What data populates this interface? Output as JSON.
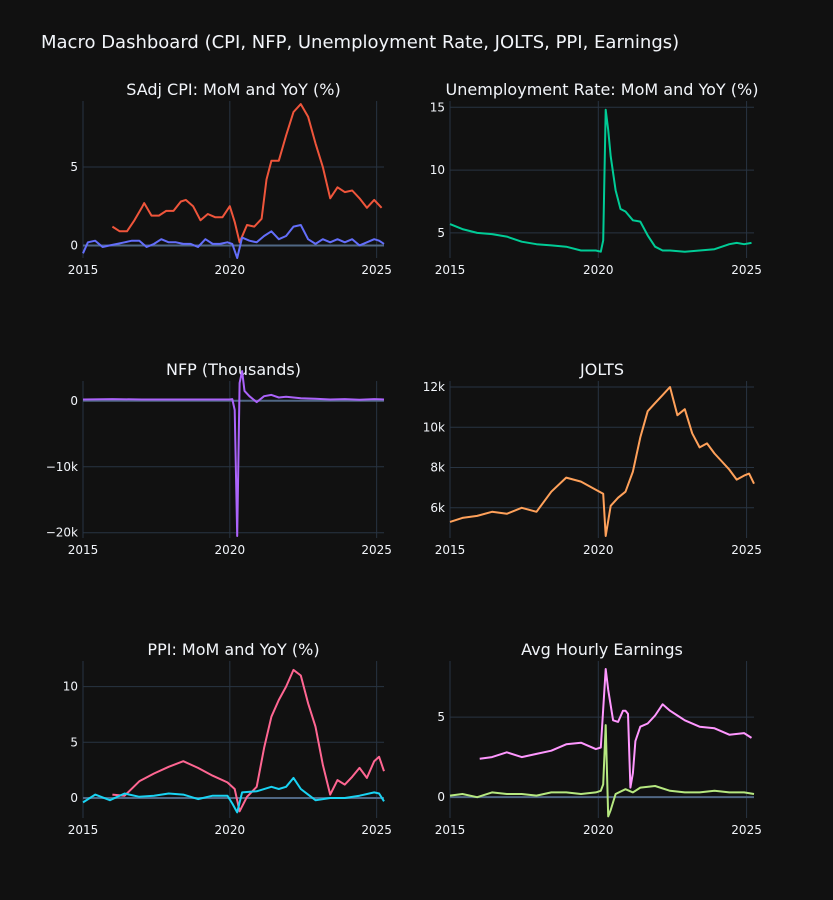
{
  "title": "Macro Dashboard (CPI, NFP, Unemployment Rate, JOLTS, PPI, Earnings)",
  "colors": {
    "background": "#111111",
    "grid": "#283442",
    "zeroline": "#506784",
    "text": "#f2f5fa"
  },
  "chart_data": [
    {
      "id": "cpi",
      "type": "line",
      "title": "SAdj CPI: MoM and YoY (%)",
      "xticks": [
        "2015",
        "2020",
        "2025"
      ],
      "yticks": [
        0,
        5
      ],
      "ytick_labels": [
        "0",
        "5"
      ],
      "xlim": [
        "2015-01",
        "2025-04"
      ],
      "ylim": [
        -0.8,
        9.2
      ],
      "series": [
        {
          "color": "#ef553b",
          "x": [
            "2016-01",
            "2016-04",
            "2016-07",
            "2016-10",
            "2017-01",
            "2017-02",
            "2017-05",
            "2017-08",
            "2017-11",
            "2018-02",
            "2018-05",
            "2018-07",
            "2018-10",
            "2019-01",
            "2019-04",
            "2019-07",
            "2019-10",
            "2020-01",
            "2020-03",
            "2020-05",
            "2020-08",
            "2020-11",
            "2021-02",
            "2021-04",
            "2021-06",
            "2021-09",
            "2021-12",
            "2022-03",
            "2022-06",
            "2022-09",
            "2022-12",
            "2023-03",
            "2023-06",
            "2023-09",
            "2023-12",
            "2024-03",
            "2024-06",
            "2024-09",
            "2024-12",
            "2025-03"
          ],
          "y": [
            1.2,
            0.9,
            0.9,
            1.6,
            2.4,
            2.7,
            1.9,
            1.9,
            2.2,
            2.2,
            2.8,
            2.9,
            2.5,
            1.6,
            2.0,
            1.8,
            1.8,
            2.5,
            1.5,
            0.2,
            1.3,
            1.2,
            1.7,
            4.2,
            5.4,
            5.4,
            7.0,
            8.5,
            9.0,
            8.2,
            6.5,
            5.0,
            3.0,
            3.7,
            3.4,
            3.5,
            3.0,
            2.4,
            2.9,
            2.4
          ]
        },
        {
          "color": "#636efa",
          "x": [
            "2015-01",
            "2015-03",
            "2015-06",
            "2015-09",
            "2015-12",
            "2016-03",
            "2016-06",
            "2016-09",
            "2016-12",
            "2017-03",
            "2017-06",
            "2017-09",
            "2017-12",
            "2018-03",
            "2018-06",
            "2018-09",
            "2018-12",
            "2019-03",
            "2019-06",
            "2019-09",
            "2019-12",
            "2020-02",
            "2020-04",
            "2020-06",
            "2020-09",
            "2020-12",
            "2021-03",
            "2021-06",
            "2021-09",
            "2021-12",
            "2022-03",
            "2022-06",
            "2022-09",
            "2022-12",
            "2023-03",
            "2023-06",
            "2023-09",
            "2023-12",
            "2024-03",
            "2024-06",
            "2024-09",
            "2024-12",
            "2025-02",
            "2025-04"
          ],
          "y": [
            -0.5,
            0.2,
            0.3,
            -0.1,
            0.0,
            0.1,
            0.2,
            0.3,
            0.3,
            -0.1,
            0.1,
            0.4,
            0.2,
            0.2,
            0.1,
            0.1,
            -0.1,
            0.4,
            0.1,
            0.1,
            0.2,
            0.1,
            -0.8,
            0.5,
            0.3,
            0.2,
            0.6,
            0.9,
            0.4,
            0.6,
            1.2,
            1.3,
            0.4,
            0.1,
            0.4,
            0.2,
            0.4,
            0.2,
            0.4,
            0.0,
            0.2,
            0.4,
            0.3,
            0.1
          ]
        }
      ]
    },
    {
      "id": "unemployment",
      "type": "line",
      "title": "Unemployment Rate: MoM and YoY (%)",
      "xticks": [
        "2015",
        "2020",
        "2025"
      ],
      "yticks": [
        5,
        10,
        15
      ],
      "ytick_labels": [
        "5",
        "10",
        "15"
      ],
      "xlim": [
        "2015-01",
        "2025-04"
      ],
      "ylim": [
        3.0,
        15.5
      ],
      "series": [
        {
          "color": "#00cc96",
          "x": [
            "2015-01",
            "2015-06",
            "2015-12",
            "2016-06",
            "2016-12",
            "2017-06",
            "2017-12",
            "2018-06",
            "2018-12",
            "2019-06",
            "2019-12",
            "2020-02",
            "2020-03",
            "2020-04",
            "2020-05",
            "2020-06",
            "2020-08",
            "2020-10",
            "2020-12",
            "2021-03",
            "2021-06",
            "2021-09",
            "2021-12",
            "2022-03",
            "2022-06",
            "2022-12",
            "2023-06",
            "2023-12",
            "2024-03",
            "2024-06",
            "2024-09",
            "2024-12",
            "2025-03"
          ],
          "y": [
            5.7,
            5.3,
            5.0,
            4.9,
            4.7,
            4.3,
            4.1,
            4.0,
            3.9,
            3.6,
            3.6,
            3.5,
            4.4,
            14.8,
            13.2,
            11.1,
            8.4,
            6.9,
            6.7,
            6.0,
            5.9,
            4.8,
            3.9,
            3.6,
            3.6,
            3.5,
            3.6,
            3.7,
            3.9,
            4.1,
            4.2,
            4.1,
            4.2
          ]
        }
      ]
    },
    {
      "id": "nfp",
      "type": "line",
      "title": "NFP (Thousands)",
      "xticks": [
        "2015",
        "2020",
        "2025"
      ],
      "yticks": [
        -20000,
        -10000,
        0
      ],
      "ytick_labels": [
        "−20k",
        "−10k",
        "0"
      ],
      "xlim": [
        "2015-01",
        "2025-04"
      ],
      "ylim": [
        -20800,
        3000
      ],
      "series": [
        {
          "color": "#ab63fa",
          "x": [
            "2015-01",
            "2016-01",
            "2017-01",
            "2018-01",
            "2019-01",
            "2020-01",
            "2020-02",
            "2020-03",
            "2020-04",
            "2020-05",
            "2020-06",
            "2020-07",
            "2020-09",
            "2020-12",
            "2021-03",
            "2021-06",
            "2021-09",
            "2021-12",
            "2022-06",
            "2022-12",
            "2023-06",
            "2023-12",
            "2024-06",
            "2024-12",
            "2025-04"
          ],
          "y": [
            200,
            250,
            200,
            200,
            200,
            200,
            250,
            -1400,
            -20500,
            2700,
            4500,
            1500,
            700,
            -200,
            700,
            900,
            500,
            600,
            400,
            300,
            200,
            250,
            150,
            250,
            200
          ]
        }
      ]
    },
    {
      "id": "jolts",
      "type": "line",
      "title": "JOLTS",
      "xticks": [
        "2015",
        "2020",
        "2025"
      ],
      "yticks": [
        6000,
        8000,
        10000,
        12000
      ],
      "ytick_labels": [
        "6k",
        "8k",
        "10k",
        "12k"
      ],
      "xlim": [
        "2015-01",
        "2025-04"
      ],
      "ylim": [
        4500,
        12300
      ],
      "series": [
        {
          "color": "#ffa15a",
          "x": [
            "2015-01",
            "2015-06",
            "2015-12",
            "2016-06",
            "2016-12",
            "2017-06",
            "2017-12",
            "2018-06",
            "2018-12",
            "2019-06",
            "2019-12",
            "2020-03",
            "2020-04",
            "2020-06",
            "2020-09",
            "2020-12",
            "2021-03",
            "2021-06",
            "2021-09",
            "2021-12",
            "2022-03",
            "2022-06",
            "2022-09",
            "2022-12",
            "2023-03",
            "2023-06",
            "2023-09",
            "2023-12",
            "2024-03",
            "2024-06",
            "2024-09",
            "2024-12",
            "2025-02",
            "2025-04"
          ],
          "y": [
            5300,
            5500,
            5600,
            5800,
            5700,
            6000,
            5800,
            6800,
            7500,
            7300,
            6900,
            6700,
            4600,
            6100,
            6500,
            6800,
            7800,
            9500,
            10800,
            11200,
            11600,
            12000,
            10600,
            10900,
            9700,
            9000,
            9200,
            8700,
            8300,
            7900,
            7400,
            7600,
            7700,
            7200
          ]
        }
      ]
    },
    {
      "id": "ppi",
      "type": "line",
      "title": "PPI: MoM and YoY (%)",
      "xticks": [
        "2015",
        "2020",
        "2025"
      ],
      "yticks": [
        0,
        5,
        10
      ],
      "ytick_labels": [
        "0",
        "5",
        "10"
      ],
      "xlim": [
        "2015-01",
        "2025-04"
      ],
      "ylim": [
        -1.8,
        12.3
      ],
      "series": [
        {
          "color": "#ff6692",
          "x": [
            "2016-01",
            "2016-06",
            "2016-12",
            "2017-06",
            "2017-12",
            "2018-06",
            "2018-12",
            "2019-06",
            "2019-12",
            "2020-03",
            "2020-05",
            "2020-08",
            "2020-12",
            "2021-03",
            "2021-06",
            "2021-09",
            "2021-12",
            "2022-03",
            "2022-06",
            "2022-09",
            "2022-12",
            "2023-03",
            "2023-06",
            "2023-09",
            "2023-12",
            "2024-03",
            "2024-06",
            "2024-09",
            "2024-12",
            "2025-02",
            "2025-04"
          ],
          "y": [
            0.3,
            0.2,
            1.5,
            2.2,
            2.8,
            3.3,
            2.7,
            2.0,
            1.4,
            0.8,
            -1.2,
            0.1,
            1.0,
            4.5,
            7.3,
            8.8,
            10.0,
            11.5,
            11.0,
            8.5,
            6.4,
            3.0,
            0.3,
            1.6,
            1.2,
            1.9,
            2.7,
            1.8,
            3.3,
            3.7,
            2.4
          ]
        },
        {
          "color": "#19d3f3",
          "x": [
            "2015-01",
            "2015-06",
            "2015-12",
            "2016-06",
            "2016-12",
            "2017-06",
            "2017-12",
            "2018-06",
            "2018-12",
            "2019-06",
            "2019-12",
            "2020-02",
            "2020-04",
            "2020-06",
            "2020-12",
            "2021-06",
            "2021-09",
            "2021-12",
            "2022-03",
            "2022-06",
            "2022-09",
            "2022-12",
            "2023-06",
            "2023-12",
            "2024-06",
            "2024-12",
            "2025-02",
            "2025-04"
          ],
          "y": [
            -0.4,
            0.3,
            -0.2,
            0.4,
            0.1,
            0.2,
            0.4,
            0.3,
            -0.1,
            0.2,
            0.2,
            -0.5,
            -1.3,
            0.5,
            0.6,
            1.0,
            0.8,
            1.0,
            1.8,
            0.8,
            0.3,
            -0.2,
            0.0,
            0.0,
            0.2,
            0.5,
            0.4,
            -0.3
          ]
        }
      ]
    },
    {
      "id": "earnings",
      "type": "line",
      "title": "Avg Hourly Earnings",
      "xticks": [
        "2015",
        "2020",
        "2025"
      ],
      "yticks": [
        0,
        5
      ],
      "ytick_labels": [
        "0",
        "5"
      ],
      "xlim": [
        "2015-01",
        "2025-04"
      ],
      "ylim": [
        -1.3,
        8.5
      ],
      "series": [
        {
          "color": "#ff97ff",
          "x": [
            "2016-01",
            "2016-06",
            "2016-12",
            "2017-06",
            "2017-12",
            "2018-06",
            "2018-12",
            "2019-06",
            "2019-12",
            "2020-02",
            "2020-04",
            "2020-05",
            "2020-07",
            "2020-09",
            "2020-11",
            "2020-12",
            "2021-01",
            "2021-02",
            "2021-03",
            "2021-04",
            "2021-06",
            "2021-09",
            "2021-12",
            "2022-03",
            "2022-06",
            "2022-09",
            "2022-12",
            "2023-06",
            "2023-12",
            "2024-06",
            "2024-12",
            "2025-03"
          ],
          "y": [
            2.4,
            2.5,
            2.8,
            2.5,
            2.7,
            2.9,
            3.3,
            3.4,
            3.0,
            3.1,
            8.0,
            6.7,
            4.8,
            4.7,
            5.4,
            5.4,
            5.2,
            0.6,
            1.5,
            3.5,
            4.4,
            4.6,
            5.1,
            5.8,
            5.4,
            5.1,
            4.8,
            4.4,
            4.3,
            3.9,
            4.0,
            3.7
          ]
        },
        {
          "color": "#b6e880",
          "x": [
            "2015-01",
            "2015-06",
            "2015-12",
            "2016-06",
            "2016-12",
            "2017-06",
            "2017-12",
            "2018-06",
            "2018-12",
            "2019-06",
            "2019-12",
            "2020-02",
            "2020-03",
            "2020-04",
            "2020-05",
            "2020-06",
            "2020-08",
            "2020-12",
            "2021-03",
            "2021-06",
            "2021-12",
            "2022-06",
            "2022-12",
            "2023-06",
            "2023-12",
            "2024-06",
            "2024-12",
            "2025-04"
          ],
          "y": [
            0.1,
            0.2,
            0.0,
            0.3,
            0.2,
            0.2,
            0.1,
            0.3,
            0.3,
            0.2,
            0.3,
            0.4,
            0.8,
            4.5,
            -1.2,
            -0.8,
            0.2,
            0.5,
            0.3,
            0.6,
            0.7,
            0.4,
            0.3,
            0.3,
            0.4,
            0.3,
            0.3,
            0.2
          ]
        }
      ]
    }
  ]
}
